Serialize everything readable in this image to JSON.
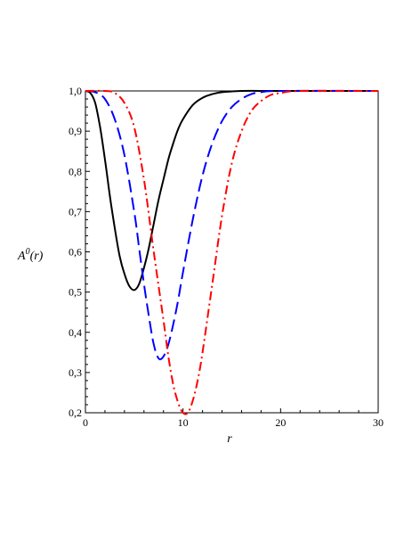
{
  "chart_data": {
    "type": "line",
    "xlabel": "r",
    "ylabel": {
      "base": "A",
      "superscript": "0",
      "argument": "(r)"
    },
    "xlim": [
      0,
      30
    ],
    "ylim": [
      0.2,
      1.0
    ],
    "x_ticks": [
      "0",
      "10",
      "20",
      "30"
    ],
    "y_ticks": [
      "0,2",
      "0,3",
      "0,4",
      "0,5",
      "0,6",
      "0,7",
      "0,8",
      "0,9",
      "1,0"
    ],
    "grid": false,
    "series": [
      {
        "style": "solid",
        "color": "#000000",
        "points": [
          [
            0,
            1.0
          ],
          [
            0.5,
            0.995
          ],
          [
            1,
            0.97
          ],
          [
            1.5,
            0.91
          ],
          [
            2,
            0.83
          ],
          [
            2.5,
            0.74
          ],
          [
            3,
            0.66
          ],
          [
            3.5,
            0.59
          ],
          [
            4,
            0.545
          ],
          [
            4.5,
            0.515
          ],
          [
            5,
            0.505
          ],
          [
            5.5,
            0.52
          ],
          [
            6,
            0.56
          ],
          [
            6.5,
            0.61
          ],
          [
            7,
            0.67
          ],
          [
            7.5,
            0.73
          ],
          [
            8,
            0.78
          ],
          [
            8.5,
            0.83
          ],
          [
            9,
            0.87
          ],
          [
            9.5,
            0.905
          ],
          [
            10,
            0.93
          ],
          [
            11,
            0.965
          ],
          [
            12,
            0.983
          ],
          [
            13,
            0.992
          ],
          [
            14,
            0.997
          ],
          [
            16,
            1.0
          ],
          [
            20,
            1.0
          ],
          [
            30,
            1.0
          ]
        ]
      },
      {
        "style": "dashed",
        "color": "#0000ff",
        "points": [
          [
            0,
            1.0
          ],
          [
            1,
            0.997
          ],
          [
            2,
            0.98
          ],
          [
            3,
            0.93
          ],
          [
            4,
            0.84
          ],
          [
            5,
            0.7
          ],
          [
            5.5,
            0.61
          ],
          [
            6,
            0.52
          ],
          [
            6.5,
            0.44
          ],
          [
            7,
            0.37
          ],
          [
            7.5,
            0.335
          ],
          [
            8,
            0.34
          ],
          [
            8.5,
            0.37
          ],
          [
            9,
            0.42
          ],
          [
            9.5,
            0.48
          ],
          [
            10,
            0.55
          ],
          [
            11,
            0.68
          ],
          [
            12,
            0.79
          ],
          [
            13,
            0.87
          ],
          [
            14,
            0.925
          ],
          [
            15,
            0.96
          ],
          [
            16,
            0.98
          ],
          [
            17,
            0.992
          ],
          [
            18,
            0.997
          ],
          [
            20,
            1.0
          ],
          [
            30,
            1.0
          ]
        ]
      },
      {
        "style": "dashdot",
        "color": "#ff0000",
        "points": [
          [
            0,
            1.0
          ],
          [
            2,
            1.0
          ],
          [
            3,
            0.995
          ],
          [
            4,
            0.97
          ],
          [
            5,
            0.91
          ],
          [
            6,
            0.78
          ],
          [
            7,
            0.6
          ],
          [
            8,
            0.43
          ],
          [
            8.5,
            0.34
          ],
          [
            9,
            0.27
          ],
          [
            9.5,
            0.225
          ],
          [
            10,
            0.2
          ],
          [
            10.5,
            0.2
          ],
          [
            11,
            0.23
          ],
          [
            11.5,
            0.28
          ],
          [
            12,
            0.35
          ],
          [
            13,
            0.52
          ],
          [
            14,
            0.69
          ],
          [
            15,
            0.82
          ],
          [
            16,
            0.9
          ],
          [
            17,
            0.95
          ],
          [
            18,
            0.975
          ],
          [
            19,
            0.99
          ],
          [
            20,
            0.995
          ],
          [
            22,
            1.0
          ],
          [
            30,
            1.0
          ]
        ]
      }
    ]
  }
}
